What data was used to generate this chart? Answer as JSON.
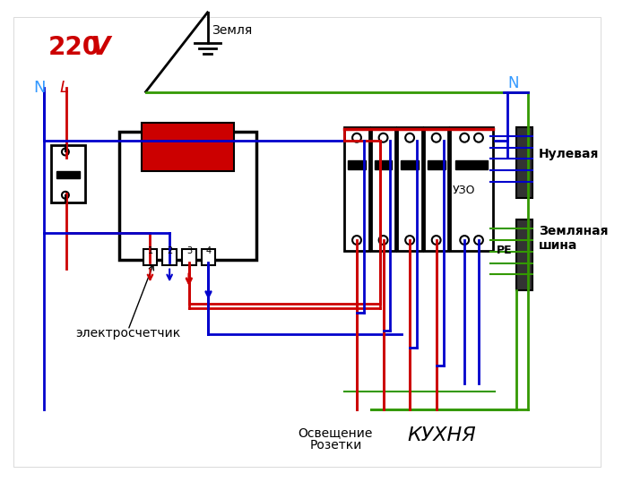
{
  "bg_color": "#ffffff",
  "title": "",
  "colors": {
    "red": "#cc0000",
    "blue": "#0000cc",
    "green": "#339900",
    "black": "#000000",
    "dark_red": "#cc0000",
    "cyan_blue": "#3399ff"
  },
  "text": {
    "voltage": "220V",
    "N_left": "N",
    "L_left": "L",
    "N_right": "N",
    "earth": "Земля",
    "electrometer": "электросчетчик",
    "uzo": "УЗО",
    "nullevaya": "Нулевая",
    "zemlyanaya": "Земляная",
    "shina": "шина",
    "PE": "PE",
    "osveshenie": "Освещение",
    "rozetki": "Розетки",
    "kukhnya": "КУХНЯ"
  }
}
